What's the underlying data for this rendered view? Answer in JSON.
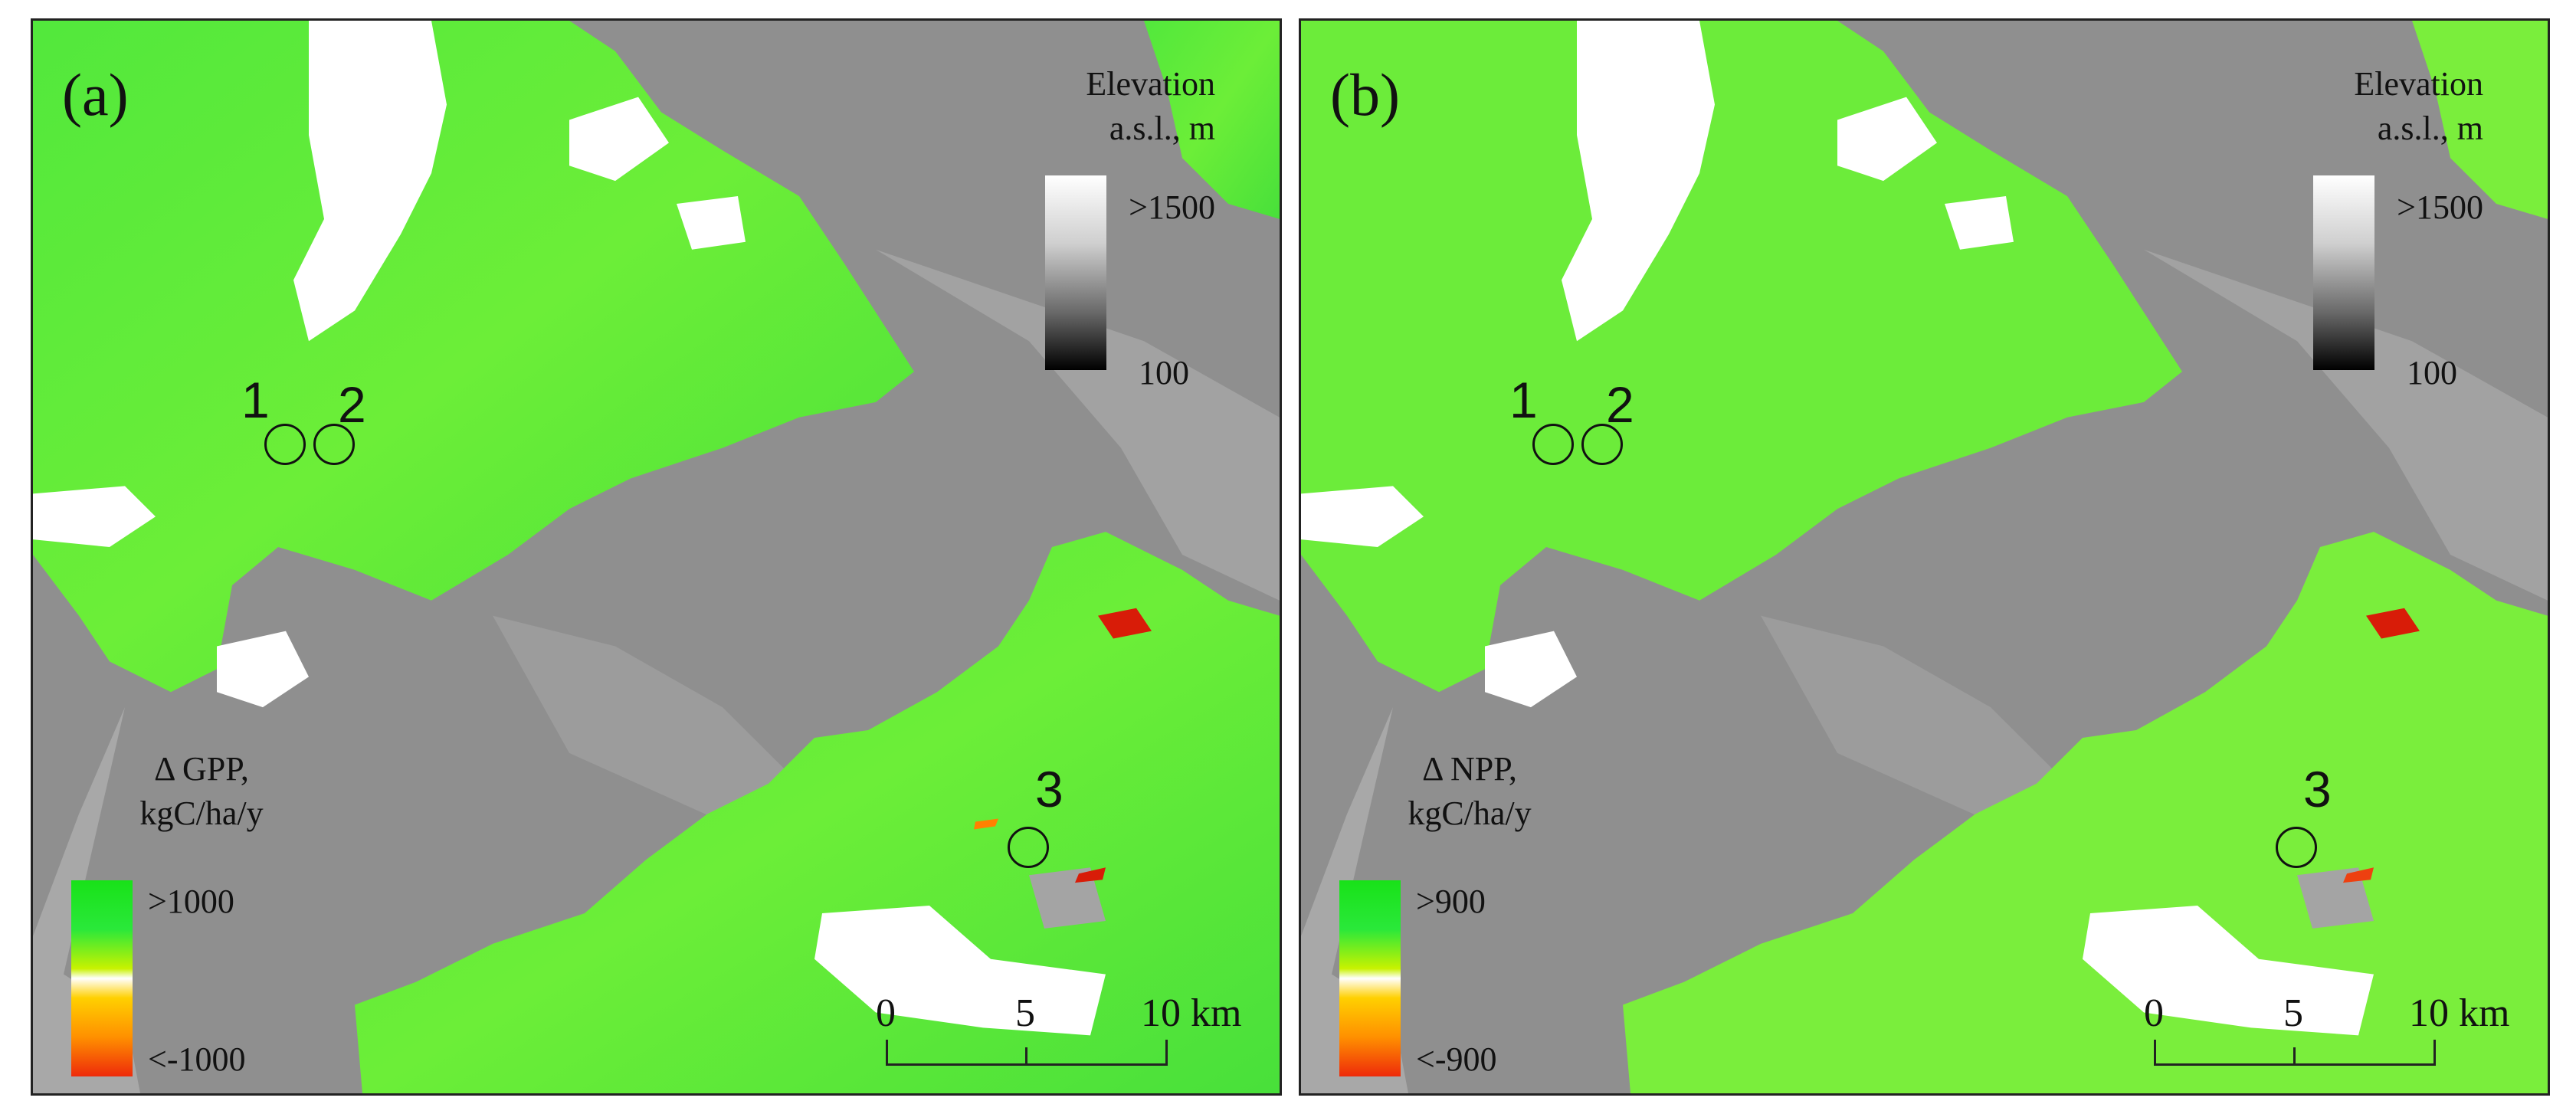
{
  "panels": [
    {
      "label": "(a)",
      "elevation_legend": {
        "title_line1": "Elevation",
        "title_line2": "a.s.l., m",
        "max_label": ">1500",
        "min_label": "100"
      },
      "delta_legend": {
        "title_line1": "Δ GPP,",
        "title_line2": "kgC/ha/y",
        "max_label": ">1000",
        "min_label": "<-1000"
      },
      "sites": [
        "1",
        "2",
        "3"
      ],
      "scale_bar": {
        "tick0": "0",
        "tick1": "5",
        "tick2": "10 km"
      }
    },
    {
      "label": "(b)",
      "elevation_legend": {
        "title_line1": "Elevation",
        "title_line2": "a.s.l., m",
        "max_label": ">1500",
        "min_label": "100"
      },
      "delta_legend": {
        "title_line1": "Δ NPP,",
        "title_line2": "kgC/ha/y",
        "max_label": ">900",
        "min_label": "<-900"
      },
      "sites": [
        "1",
        "2",
        "3"
      ],
      "scale_bar": {
        "tick0": "0",
        "tick1": "5",
        "tick2": "10 km"
      }
    }
  ],
  "colors": {
    "terrain_gray": "#8f8f8f",
    "forest_green": "#3ee23a",
    "light_green": "#7ef03c",
    "snow_white": "#ffffff",
    "decline_red": "#d81c08"
  }
}
